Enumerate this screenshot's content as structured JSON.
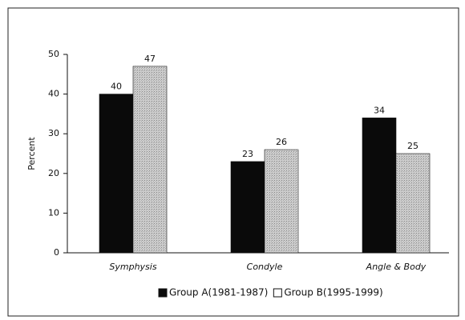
{
  "chart_data": {
    "type": "bar",
    "categories": [
      "Symphysis",
      "Condyle",
      "Angle & Body"
    ],
    "series": [
      {
        "name": "Group A(1981-1987)",
        "color": "#0a0a0a",
        "values": [
          40,
          23,
          34
        ]
      },
      {
        "name": "Group B(1995-1999)",
        "color": "#cdcdcd",
        "values": [
          47,
          26,
          25
        ]
      }
    ],
    "ylabel": "Percent",
    "ylim": [
      0,
      50
    ],
    "yticks": [
      0,
      10,
      20,
      30,
      40,
      50
    ],
    "legend": "bottom"
  }
}
